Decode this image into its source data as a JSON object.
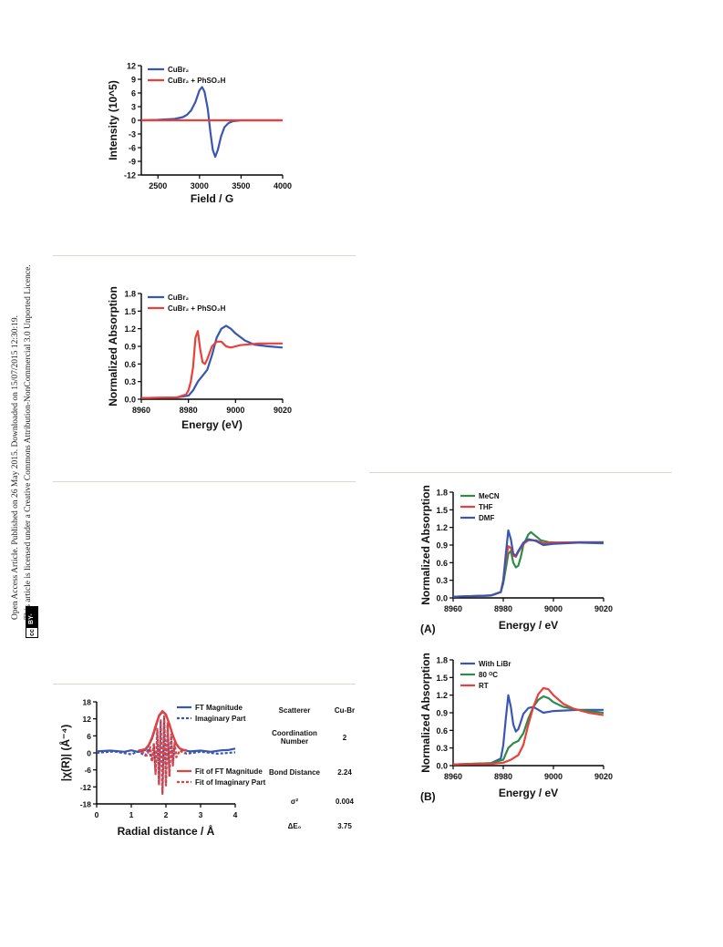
{
  "sidebar": {
    "line1": "Open Access Article. Published on 26 May 2015. Downloaded on 15/07/2015 12:30:19.",
    "line2": "This article is licensed under a Creative Commons Attribution-NonCommercial 3.0 Unported Licence.",
    "badge_cc": "cc",
    "badge_label": "BY-NC"
  },
  "colors": {
    "blue": "#3a56b0",
    "red": "#e8403a",
    "green": "#2e8b4a"
  },
  "chart_data": [
    {
      "id": "epr",
      "type": "line",
      "xlabel": "Field / G",
      "ylabel": "Intensity (10^5)",
      "xlim": [
        2300,
        4000
      ],
      "ylim": [
        -12,
        12
      ],
      "xticks": [
        2500,
        3000,
        3500,
        4000
      ],
      "yticks": [
        12,
        9,
        6,
        3,
        0,
        -3,
        -6,
        -9,
        -12
      ],
      "legend": [
        "CuBr₂",
        "CuBr₂ + PhSO₂H"
      ],
      "series": [
        {
          "name": "CuBr₂",
          "color": "blue",
          "x": [
            2300,
            2500,
            2700,
            2800,
            2850,
            2900,
            2950,
            3000,
            3030,
            3060,
            3100,
            3130,
            3160,
            3190,
            3220,
            3260,
            3300,
            3350,
            3400,
            3500,
            3700,
            4000
          ],
          "y": [
            0,
            0.1,
            0.3,
            0.7,
            1.2,
            2.2,
            4,
            6.6,
            7.3,
            6.3,
            2.5,
            -2.5,
            -6.5,
            -8,
            -6.5,
            -3.5,
            -1.5,
            -0.6,
            -0.2,
            0,
            0,
            0
          ]
        },
        {
          "name": "CuBr₂ + PhSO₂H",
          "color": "red",
          "x": [
            2300,
            4000
          ],
          "y": [
            0,
            0
          ]
        }
      ]
    },
    {
      "id": "xanes1",
      "type": "line",
      "xlabel": "Energy (eV)",
      "ylabel": "Normalized  Absorption",
      "xlim": [
        8960,
        9020
      ],
      "ylim": [
        0,
        1.8
      ],
      "xticks": [
        8960,
        8980,
        9000,
        9020
      ],
      "yticks": [
        1.8,
        1.5,
        1.2,
        0.9,
        0.6,
        0.3,
        0.0
      ],
      "ytick_labels": [
        "1.8",
        "1.5",
        "1.2",
        "0.9",
        "0.6",
        "0.3",
        "0.0"
      ],
      "legend": [
        "CuBr₂",
        "CuBr₂ + PhSO₂H"
      ],
      "series": [
        {
          "name": "CuBr₂",
          "color": "blue",
          "x": [
            8960,
            8975,
            8980,
            8982,
            8984,
            8986,
            8988,
            8990,
            8992,
            8994,
            8996,
            8998,
            9000,
            9004,
            9008,
            9014,
            9020
          ],
          "y": [
            0.02,
            0.03,
            0.06,
            0.15,
            0.3,
            0.4,
            0.5,
            0.75,
            1.05,
            1.2,
            1.25,
            1.2,
            1.12,
            1.0,
            0.93,
            0.9,
            0.88
          ]
        },
        {
          "name": "CuBr₂ + PhSO₂H",
          "color": "red",
          "x": [
            8960,
            8975,
            8979,
            8980,
            8981,
            8982,
            8983,
            8984,
            8985,
            8986,
            8987,
            8988,
            8990,
            8992,
            8994,
            8996,
            8998,
            9002,
            9010,
            9020
          ],
          "y": [
            0.02,
            0.03,
            0.08,
            0.15,
            0.3,
            0.55,
            1.05,
            1.16,
            0.85,
            0.63,
            0.6,
            0.68,
            0.9,
            0.98,
            0.98,
            0.9,
            0.88,
            0.92,
            0.95,
            0.95
          ]
        }
      ]
    },
    {
      "id": "exafs",
      "type": "line",
      "xlabel": "Radial distance  / Å",
      "ylabel": "|χ(R)| (Å⁻⁴)",
      "xlim": [
        0,
        4
      ],
      "ylim": [
        -18,
        18
      ],
      "xticks": [
        0,
        1,
        2,
        3,
        4
      ],
      "yticks": [
        18,
        12,
        6,
        0,
        -6,
        -12,
        -18
      ],
      "legend": [
        "FT Magnitude",
        "Imaginary Part",
        "Fit of FT Magnitude",
        "Fit of Imaginary Part"
      ],
      "series": [
        {
          "name": "FT Magnitude",
          "color": "blue",
          "style": "solid",
          "x": [
            0,
            0.4,
            0.8,
            1.0,
            1.2,
            1.4,
            1.5,
            1.6,
            1.7,
            1.8,
            1.9,
            2.0,
            2.1,
            2.2,
            2.3,
            2.4,
            2.5,
            2.7,
            3.0,
            3.3,
            3.6,
            3.8,
            4.0
          ],
          "y": [
            0.5,
            0.8,
            0.4,
            0.9,
            0.3,
            1.0,
            2.5,
            5,
            9,
            13,
            14.5,
            13.5,
            10,
            6,
            3,
            1.5,
            1.0,
            0.5,
            0.8,
            0.4,
            0.9,
            1.0,
            1.5
          ]
        },
        {
          "name": "Imaginary Part",
          "color": "blue",
          "style": "dashed",
          "x": [
            0,
            0.5,
            1.0,
            1.2,
            1.4,
            1.5,
            1.6,
            1.65,
            1.7,
            1.75,
            1.8,
            1.85,
            1.9,
            1.95,
            2.0,
            2.05,
            2.1,
            2.15,
            2.2,
            2.25,
            2.3,
            2.4,
            2.6,
            3.0,
            3.5,
            4.0
          ],
          "y": [
            0,
            0.5,
            -0.5,
            0.5,
            -1,
            1.5,
            -3,
            3,
            -7,
            8,
            -11,
            11,
            -14,
            13,
            -11,
            10,
            -8,
            6,
            -4,
            3,
            -1.5,
            0.8,
            -0.3,
            0.4,
            -0.3,
            0.2
          ]
        },
        {
          "name": "Fit of FT Magnitude",
          "color": "red",
          "style": "solid",
          "x": [
            1.2,
            1.4,
            1.5,
            1.6,
            1.7,
            1.8,
            1.9,
            2.0,
            2.1,
            2.2,
            2.3,
            2.4,
            2.5,
            2.6
          ],
          "y": [
            0.8,
            1.3,
            2.8,
            5.5,
            9.5,
            13.2,
            14.8,
            13.6,
            10.2,
            6.2,
            3.2,
            1.6,
            1.1,
            0.9
          ]
        },
        {
          "name": "Fit of Imaginary Part",
          "color": "red",
          "style": "dashed",
          "x": [
            1.3,
            1.45,
            1.55,
            1.6,
            1.65,
            1.7,
            1.75,
            1.8,
            1.85,
            1.9,
            1.95,
            2.0,
            2.05,
            2.1,
            2.15,
            2.2,
            2.25,
            2.3,
            2.4,
            2.55
          ],
          "y": [
            0.5,
            -1,
            2,
            -3,
            3.5,
            -7.5,
            8.5,
            -11.5,
            11.5,
            -14.5,
            13.5,
            -11.5,
            10.5,
            -8.5,
            6.5,
            -4.5,
            3.5,
            -1.5,
            0.8,
            -0.3
          ]
        }
      ],
      "table": {
        "rows": [
          {
            "label": "Scatterer",
            "value": "Cu-Br"
          },
          {
            "label": "Coordination Number",
            "value": "2"
          },
          {
            "label": "Bond Distance",
            "value": "2.24"
          },
          {
            "label": "σ²",
            "value": "0.004"
          },
          {
            "label": "ΔE₀",
            "value": "3.75"
          }
        ]
      }
    },
    {
      "id": "xanesA",
      "panel_label": "(A)",
      "type": "line",
      "xlabel": "Energy / eV",
      "ylabel": "Normalized  Absorption",
      "xlim": [
        8960,
        9020
      ],
      "ylim": [
        0,
        1.8
      ],
      "xticks": [
        8960,
        8980,
        9000,
        9020
      ],
      "yticks": [
        1.8,
        1.5,
        1.2,
        0.9,
        0.6,
        0.3,
        0.0
      ],
      "ytick_labels": [
        "1.8",
        "1.5",
        "1.2",
        "0.9",
        "0.6",
        "0.3",
        "0.0"
      ],
      "legend": [
        "MeCN",
        "THF",
        "DMF"
      ],
      "series": [
        {
          "name": "MeCN",
          "color": "green",
          "x": [
            8960,
            8975,
            8979,
            8980,
            8981,
            8982,
            8983,
            8984,
            8985,
            8986,
            8987,
            8988,
            8990,
            8991,
            8993,
            8995,
            8998,
            9002,
            9010,
            9020
          ],
          "y": [
            0.02,
            0.04,
            0.1,
            0.25,
            0.5,
            0.75,
            0.8,
            0.6,
            0.52,
            0.55,
            0.7,
            0.9,
            1.08,
            1.12,
            1.05,
            0.98,
            0.95,
            0.94,
            0.94,
            0.93
          ]
        },
        {
          "name": "THF",
          "color": "red",
          "x": [
            8960,
            8975,
            8979,
            8980,
            8981,
            8982,
            8983,
            8984,
            8985,
            8986,
            8988,
            8990,
            8993,
            8996,
            9000,
            9010,
            9020
          ],
          "y": [
            0.02,
            0.04,
            0.1,
            0.3,
            0.65,
            0.88,
            0.85,
            0.72,
            0.7,
            0.78,
            0.92,
            0.98,
            0.98,
            0.93,
            0.94,
            0.95,
            0.95
          ]
        },
        {
          "name": "DMF",
          "color": "blue",
          "x": [
            8960,
            8975,
            8979,
            8980,
            8981,
            8982,
            8983,
            8984,
            8985,
            8986,
            8988,
            8990,
            8993,
            8996,
            9000,
            9010,
            9020
          ],
          "y": [
            0.02,
            0.04,
            0.1,
            0.3,
            0.75,
            1.15,
            1.0,
            0.75,
            0.72,
            0.8,
            0.94,
            1.0,
            0.97,
            0.9,
            0.92,
            0.94,
            0.94
          ]
        }
      ]
    },
    {
      "id": "xanesB",
      "panel_label": "(B)",
      "type": "line",
      "xlabel": "Energy / eV",
      "ylabel": "Normalized  Absorption",
      "xlim": [
        8960,
        9020
      ],
      "ylim": [
        0,
        1.8
      ],
      "xticks": [
        8960,
        8980,
        9000,
        9020
      ],
      "yticks": [
        1.8,
        1.5,
        1.2,
        0.9,
        0.6,
        0.3,
        0.0
      ],
      "ytick_labels": [
        "1.8",
        "1.5",
        "1.2",
        "0.9",
        "0.6",
        "0.3",
        "0.0"
      ],
      "legend": [
        "With LiBr",
        "80 ᴼC",
        "RT"
      ],
      "series": [
        {
          "name": "With LiBr",
          "color": "blue",
          "x": [
            8960,
            8975,
            8979,
            8980,
            8981,
            8982,
            8983,
            8984,
            8985,
            8986,
            8987,
            8988,
            8990,
            8992,
            8994,
            8996,
            9000,
            9010,
            9020
          ],
          "y": [
            0.02,
            0.04,
            0.12,
            0.35,
            0.8,
            1.2,
            1.0,
            0.7,
            0.58,
            0.62,
            0.75,
            0.88,
            0.98,
            1.0,
            0.95,
            0.9,
            0.93,
            0.95,
            0.95
          ]
        },
        {
          "name": "80 ᴼC",
          "color": "green",
          "x": [
            8960,
            8975,
            8980,
            8982,
            8984,
            8986,
            8988,
            8990,
            8992,
            8994,
            8996,
            8998,
            9000,
            9004,
            9010,
            9020
          ],
          "y": [
            0.02,
            0.04,
            0.1,
            0.3,
            0.38,
            0.42,
            0.55,
            0.8,
            1.0,
            1.12,
            1.18,
            1.15,
            1.08,
            1.0,
            0.95,
            0.9
          ]
        },
        {
          "name": "RT",
          "color": "red",
          "x": [
            8960,
            8975,
            8980,
            8983,
            8986,
            8988,
            8990,
            8992,
            8994,
            8996,
            8998,
            9000,
            9004,
            9008,
            9014,
            9020
          ],
          "y": [
            0.02,
            0.03,
            0.05,
            0.1,
            0.18,
            0.35,
            0.7,
            1.0,
            1.22,
            1.32,
            1.3,
            1.2,
            1.05,
            0.97,
            0.9,
            0.86
          ]
        }
      ]
    }
  ]
}
